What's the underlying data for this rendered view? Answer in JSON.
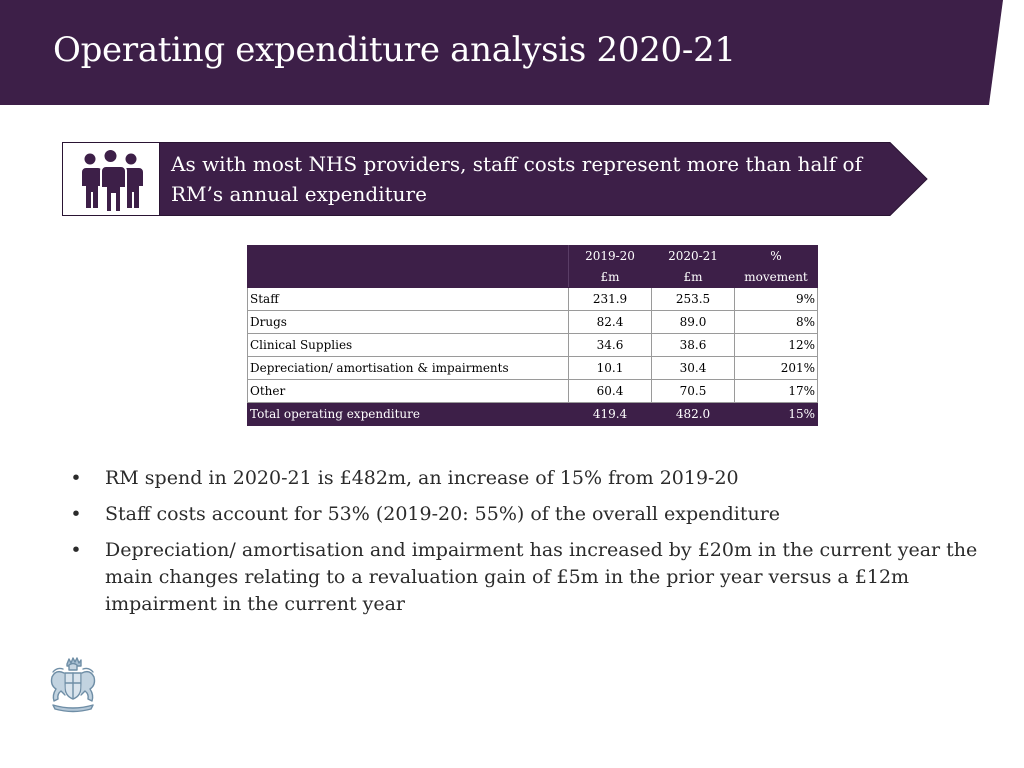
{
  "header": {
    "title": "Operating expenditure analysis 2020-21"
  },
  "callout": {
    "icon": "people-group-icon",
    "text": "As with most NHS providers, staff costs represent more than half of RM’s annual expenditure"
  },
  "table": {
    "columns": [
      {
        "line1": "2019-20",
        "line2": "£m"
      },
      {
        "line1": "2020-21",
        "line2": "£m"
      },
      {
        "line1": "%",
        "line2": "movement"
      }
    ],
    "rows": [
      {
        "label": "Staff",
        "y2019": "231.9",
        "y2020": "253.5",
        "movement": "9%"
      },
      {
        "label": "Drugs",
        "y2019": "82.4",
        "y2020": "89.0",
        "movement": "8%"
      },
      {
        "label": "Clinical Supplies",
        "y2019": "34.6",
        "y2020": "38.6",
        "movement": "12%"
      },
      {
        "label": "Depreciation/ amortisation & impairments",
        "y2019": "10.1",
        "y2020": "30.4",
        "movement": "201%"
      },
      {
        "label": "Other",
        "y2019": "60.4",
        "y2020": "70.5",
        "movement": "17%"
      }
    ],
    "total": {
      "label": "Total operating expenditure",
      "y2019": "419.4",
      "y2020": "482.0",
      "movement": "15%"
    }
  },
  "bullets": [
    "RM spend in 2020-21 is £482m, an increase of 15% from 2019-20",
    "Staff costs account for 53% (2019-20: 55%) of the overall expenditure",
    "Depreciation/ amortisation and impairment has increased by £20m in the current year the main changes relating to a revaluation gain of £5m in the prior year versus a £12m impairment in the current year"
  ],
  "bullet_glyph": "•",
  "footer": {
    "crest_icon": "royal-crest-logo-icon"
  },
  "colors": {
    "brand_purple": "#3d1f48",
    "text_dark": "#2b2b2b",
    "white": "#ffffff"
  }
}
